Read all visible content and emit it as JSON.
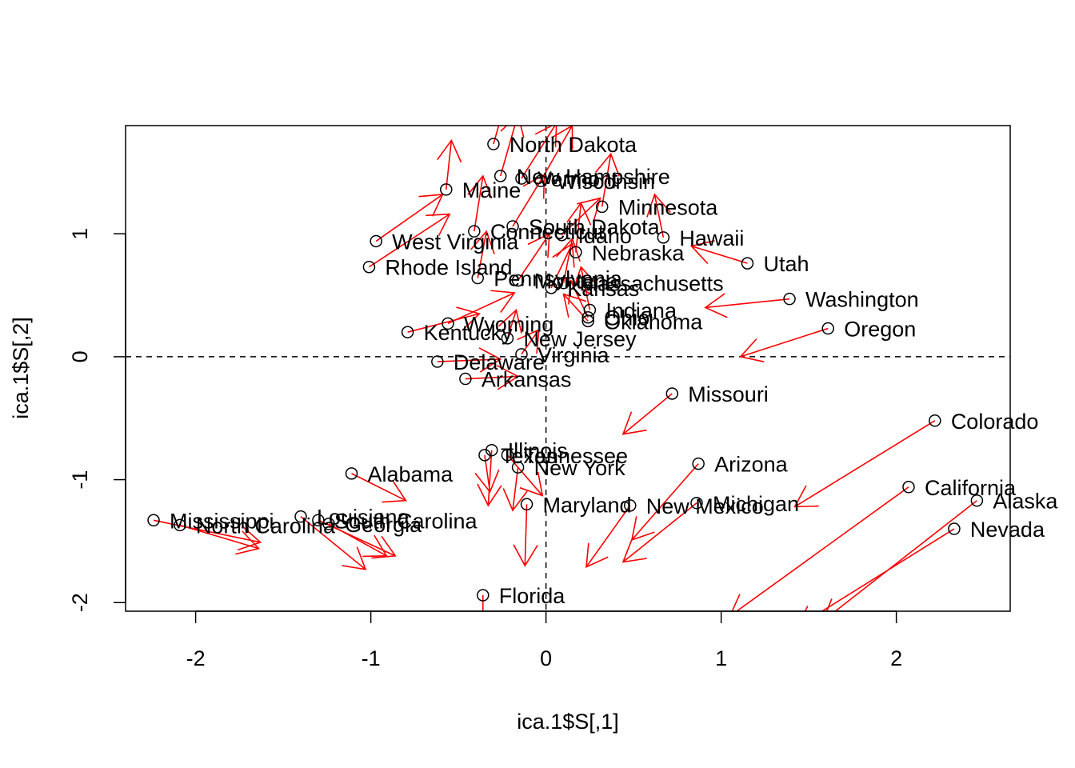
{
  "chart_data": {
    "type": "scatter",
    "title": "",
    "xlabel": "ica.1$S[,1]",
    "ylabel": "ica.1$S[,2]",
    "xlim": [
      -2.4,
      2.65
    ],
    "ylim": [
      -2.07,
      1.88
    ],
    "x_ticks": [
      -2,
      -1,
      0,
      1,
      2
    ],
    "y_ticks": [
      -2,
      -1,
      0,
      1
    ],
    "reference_lines": [
      {
        "orientation": "horizontal",
        "value": 0,
        "style": "dashed"
      },
      {
        "orientation": "vertical",
        "value": 0,
        "style": "dashed"
      }
    ],
    "arrow_color": "#ff0000",
    "points": [
      {
        "label": "North Dakota",
        "x": -0.3,
        "y": 1.73,
        "dx": 0.1,
        "dy": 0.5
      },
      {
        "label": "New Hampshire",
        "x": -0.26,
        "y": 1.47,
        "dx": 0.1,
        "dy": 0.5
      },
      {
        "label": "Vermont",
        "x": -0.14,
        "y": 1.45,
        "dx": 0.2,
        "dy": 0.45
      },
      {
        "label": "Wisconsin",
        "x": -0.03,
        "y": 1.43,
        "dx": 0.18,
        "dy": 0.45
      },
      {
        "label": "Maine",
        "x": -0.57,
        "y": 1.36,
        "dx": 0.03,
        "dy": 0.4
      },
      {
        "label": "Minnesota",
        "x": 0.32,
        "y": 1.22,
        "dx": 0.05,
        "dy": 0.43
      },
      {
        "label": "South Dakota",
        "x": -0.19,
        "y": 1.06,
        "dx": 0.18,
        "dy": 0.42
      },
      {
        "label": "Connecticut",
        "x": -0.41,
        "y": 1.02,
        "dx": 0.05,
        "dy": 0.45
      },
      {
        "label": "Idaho",
        "x": 0.09,
        "y": 0.99,
        "dx": 0.22,
        "dy": 0.3
      },
      {
        "label": "Hawaii",
        "x": 0.67,
        "y": 0.97,
        "dx": -0.05,
        "dy": 0.35
      },
      {
        "label": "West Virginia",
        "x": -0.97,
        "y": 0.94,
        "dx": 0.38,
        "dy": 0.38
      },
      {
        "label": "Nebraska",
        "x": 0.17,
        "y": 0.85,
        "dx": 0.03,
        "dy": 0.4
      },
      {
        "label": "Utah",
        "x": 1.15,
        "y": 0.76,
        "dx": -0.32,
        "dy": 0.14
      },
      {
        "label": "Rhode Island",
        "x": -1.01,
        "y": 0.73,
        "dx": 0.46,
        "dy": 0.43
      },
      {
        "label": "Pennsylvania",
        "x": -0.39,
        "y": 0.64,
        "dx": 0.05,
        "dy": 0.38
      },
      {
        "label": "Montana",
        "x": -0.16,
        "y": 0.62,
        "dx": 0.18,
        "dy": 0.38
      },
      {
        "label": "Massachusetts",
        "x": 0.1,
        "y": 0.6,
        "dx": 0.05,
        "dy": 0.36
      },
      {
        "label": "Kansas",
        "x": 0.03,
        "y": 0.56,
        "dx": 0.12,
        "dy": 0.36
      },
      {
        "label": "Washington",
        "x": 1.39,
        "y": 0.47,
        "dx": -0.48,
        "dy": -0.07
      },
      {
        "label": "Indiana",
        "x": 0.25,
        "y": 0.38,
        "dx": -0.05,
        "dy": 0.35
      },
      {
        "label": "Ohio",
        "x": 0.24,
        "y": 0.32,
        "dx": -0.1,
        "dy": 0.3
      },
      {
        "label": "Wyoming",
        "x": -0.56,
        "y": 0.27,
        "dx": 0.38,
        "dy": 0.25
      },
      {
        "label": "Oklahoma",
        "x": 0.24,
        "y": 0.29,
        "dx": -0.14,
        "dy": 0.22
      },
      {
        "label": "Oregon",
        "x": 1.61,
        "y": 0.23,
        "dx": -0.5,
        "dy": -0.23
      },
      {
        "label": "Kentucky",
        "x": -0.79,
        "y": 0.2,
        "dx": 0.41,
        "dy": 0.15
      },
      {
        "label": "New Jersey",
        "x": -0.22,
        "y": 0.15,
        "dx": 0.05,
        "dy": 0.23
      },
      {
        "label": "Virginia",
        "x": -0.14,
        "y": 0.02,
        "dx": 0.1,
        "dy": 0.2
      },
      {
        "label": "Delaware",
        "x": -0.62,
        "y": -0.04,
        "dx": 0.36,
        "dy": 0.02
      },
      {
        "label": "Arkansas",
        "x": -0.46,
        "y": -0.18,
        "dx": 0.3,
        "dy": 0.02
      },
      {
        "label": "Missouri",
        "x": 0.72,
        "y": -0.3,
        "dx": -0.28,
        "dy": -0.33
      },
      {
        "label": "Colorado",
        "x": 2.22,
        "y": -0.52,
        "dx": -0.8,
        "dy": -0.7
      },
      {
        "label": "Illinois",
        "x": -0.31,
        "y": -0.76,
        "dx": -0.02,
        "dy": -0.45
      },
      {
        "label": "Texas",
        "x": -0.35,
        "y": -0.8,
        "dx": 0.03,
        "dy": -0.3
      },
      {
        "label": "Tennessee",
        "x": -0.22,
        "y": -0.8,
        "dx": 0.2,
        "dy": -0.33
      },
      {
        "label": "New York",
        "x": -0.16,
        "y": -0.9,
        "dx": -0.03,
        "dy": -0.35
      },
      {
        "label": "Arizona",
        "x": 0.87,
        "y": -0.87,
        "dx": -0.38,
        "dy": -0.62
      },
      {
        "label": "Alabama",
        "x": -1.11,
        "y": -0.95,
        "dx": 0.31,
        "dy": -0.22
      },
      {
        "label": "California",
        "x": 2.07,
        "y": -1.06,
        "dx": -1.02,
        "dy": -1.05
      },
      {
        "label": "Michigan",
        "x": 0.86,
        "y": -1.19,
        "dx": -0.42,
        "dy": -0.48
      },
      {
        "label": "Alaska",
        "x": 2.46,
        "y": -1.17,
        "dx": -0.88,
        "dy": -0.98
      },
      {
        "label": "Maryland",
        "x": -0.11,
        "y": -1.2,
        "dx": -0.01,
        "dy": -0.5
      },
      {
        "label": "New Mexico",
        "x": 0.48,
        "y": -1.21,
        "dx": -0.25,
        "dy": -0.5
      },
      {
        "label": "Louisiana",
        "x": -1.4,
        "y": -1.3,
        "dx": 0.37,
        "dy": -0.43
      },
      {
        "label": "Mississippi",
        "x": -2.24,
        "y": -1.33,
        "dx": 0.61,
        "dy": -0.18
      },
      {
        "label": "South Carolina",
        "x": -1.3,
        "y": -1.33,
        "dx": 0.44,
        "dy": -0.29
      },
      {
        "label": "Georgia",
        "x": -1.24,
        "y": -1.36,
        "dx": 0.33,
        "dy": -0.26
      },
      {
        "label": "North Carolina",
        "x": -2.09,
        "y": -1.37,
        "dx": 0.45,
        "dy": -0.19
      },
      {
        "label": "Nevada",
        "x": 2.33,
        "y": -1.4,
        "dx": -0.9,
        "dy": -0.8
      },
      {
        "label": "Florida",
        "x": -0.36,
        "y": -1.94,
        "dx": 0,
        "dy": -0.5
      }
    ]
  }
}
